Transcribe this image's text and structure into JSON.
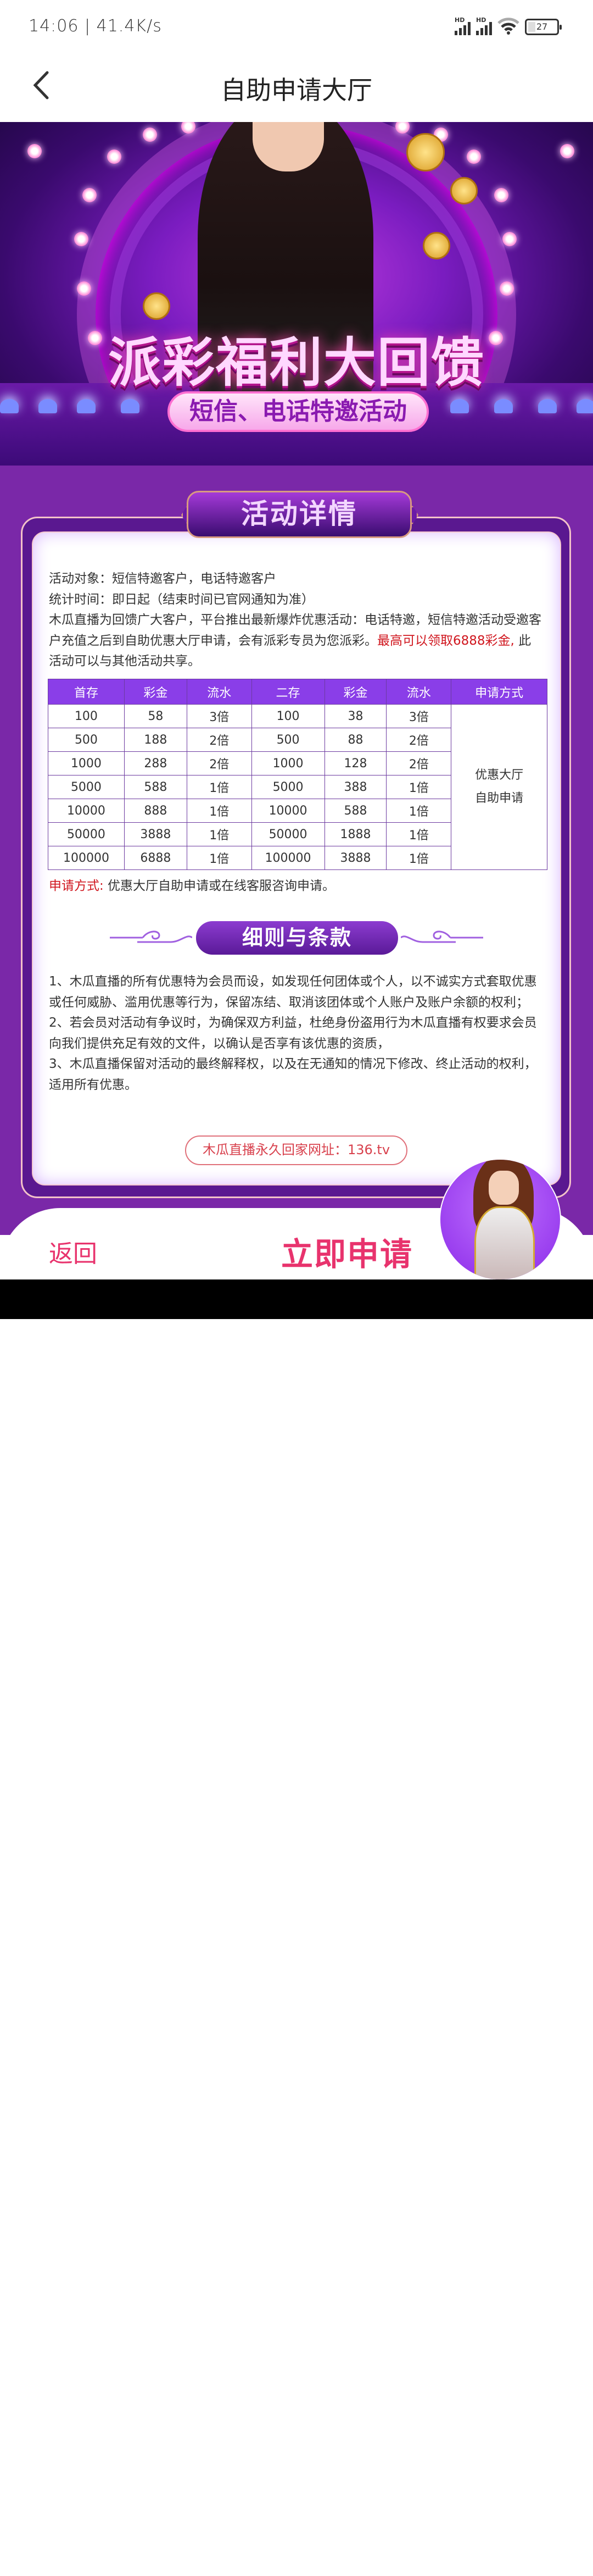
{
  "status_bar": {
    "time_speed": "14:06 | 41.4K/s",
    "signal_label": "HD",
    "battery": "27"
  },
  "header": {
    "title": "自助申请大厅",
    "back_icon": "chevron-left-icon"
  },
  "banner": {
    "title": "派彩福利大回馈",
    "subtitle": "短信、电话特邀活动"
  },
  "details": {
    "section_title": "活动详情",
    "line1": "活动对象：短信特邀客户，电话特邀客户",
    "line2": "统计时间：即日起（结束时间已官网通知为准）",
    "line3": "木瓜直播为回馈广大客户，平台推出最新爆炸优惠活动：电话特邀，短信特邀活动受邀客户充值之后到自助优惠大厅申请，会有派彩专员为您派彩。",
    "line3_highlight": "最高可以领取6888彩金,",
    "line3_tail": " 此活动可以与其他活动共享。"
  },
  "table": {
    "headers": [
      "首存",
      "彩金",
      "流水",
      "二存",
      "彩金",
      "流水",
      "申请方式"
    ],
    "rows": [
      [
        "100",
        "58",
        "3倍",
        "100",
        "38",
        "3倍"
      ],
      [
        "500",
        "188",
        "2倍",
        "500",
        "88",
        "2倍"
      ],
      [
        "1000",
        "288",
        "2倍",
        "1000",
        "128",
        "2倍"
      ],
      [
        "5000",
        "588",
        "1倍",
        "5000",
        "388",
        "1倍"
      ],
      [
        "10000",
        "888",
        "1倍",
        "10000",
        "588",
        "1倍"
      ],
      [
        "50000",
        "3888",
        "1倍",
        "50000",
        "1888",
        "1倍"
      ],
      [
        "100000",
        "6888",
        "1倍",
        "100000",
        "3888",
        "1倍"
      ]
    ],
    "method_line1": "优惠大厅",
    "method_line2": "自助申请"
  },
  "apply_method": {
    "label": "申请方式:",
    "text": " 优惠大厅自助申请或在线客服咨询申请。"
  },
  "terms": {
    "section_title": "细则与条款",
    "items": [
      "1、木瓜直播的所有优惠特为会员而设，如发现任何团体或个人，以不诚实方式套取优惠或任何威胁、滥用优惠等行为，保留冻结、取消该团体或个人账户及账户余额的权利；",
      "2、若会员对活动有争议时，为确保双方利益，杜绝身份盗用行为木瓜直播有权要求会员向我们提供充足有效的文件，以确认是否享有该优惠的资质，",
      "3、木瓜直播保留对活动的最终解释权，以及在无通知的情况下修改、终止活动的权利，适用所有优惠。"
    ],
    "url_text": "木瓜直播永久回家网址：136.tv"
  },
  "bottom_bar": {
    "back_label": "返回",
    "apply_label": "立即申请"
  },
  "colors": {
    "accent_pink": "#e8336d",
    "purple": "#7a28a8",
    "table_header": "#8a3ee8",
    "highlight_red": "#d0161e"
  }
}
